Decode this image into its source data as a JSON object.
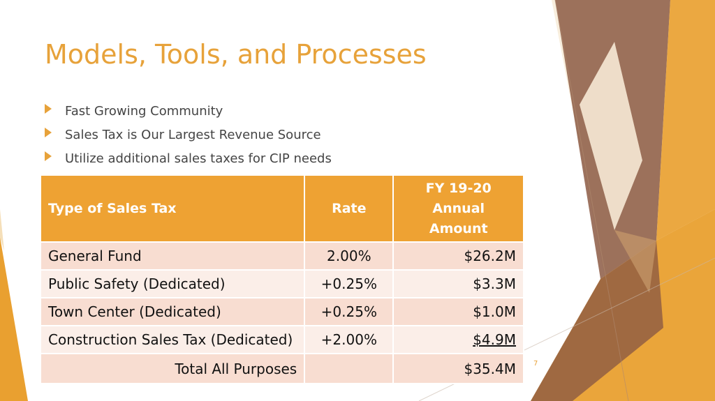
{
  "slide": {
    "title": "Models, Tools, and Processes",
    "page_number": "7"
  },
  "bullets": [
    {
      "text": "Fast Growing Community"
    },
    {
      "text": "Sales Tax is Our Largest Revenue Source"
    },
    {
      "text": "Utilize additional sales taxes for CIP needs"
    }
  ],
  "table": {
    "headers": {
      "type": "Type of Sales Tax",
      "rate": "Rate",
      "amount_line1": "FY 19-20",
      "amount_line2": "Annual",
      "amount_line3": "Amount"
    },
    "rows": [
      {
        "type": "General Fund",
        "rate": "2.00%",
        "amount": "$26.2M"
      },
      {
        "type": "Public Safety (Dedicated)",
        "rate": "+0.25%",
        "amount": "$3.3M"
      },
      {
        "type": "Town Center (Dedicated)",
        "rate": "+0.25%",
        "amount": "$1.0M"
      },
      {
        "type": "Construction Sales Tax (Dedicated)",
        "rate": "+2.00%",
        "amount": "$4.9M"
      }
    ],
    "total": {
      "label": "Total All Purposes",
      "rate": "",
      "amount": "$35.4M"
    }
  },
  "colors": {
    "accent": "#E7A23A",
    "header_fill": "#EEA233",
    "row_odd": "#F8DDD1",
    "row_even": "#FBEEE8",
    "deco_brown": "#8C5A44",
    "deco_orange": "#E9A030"
  }
}
